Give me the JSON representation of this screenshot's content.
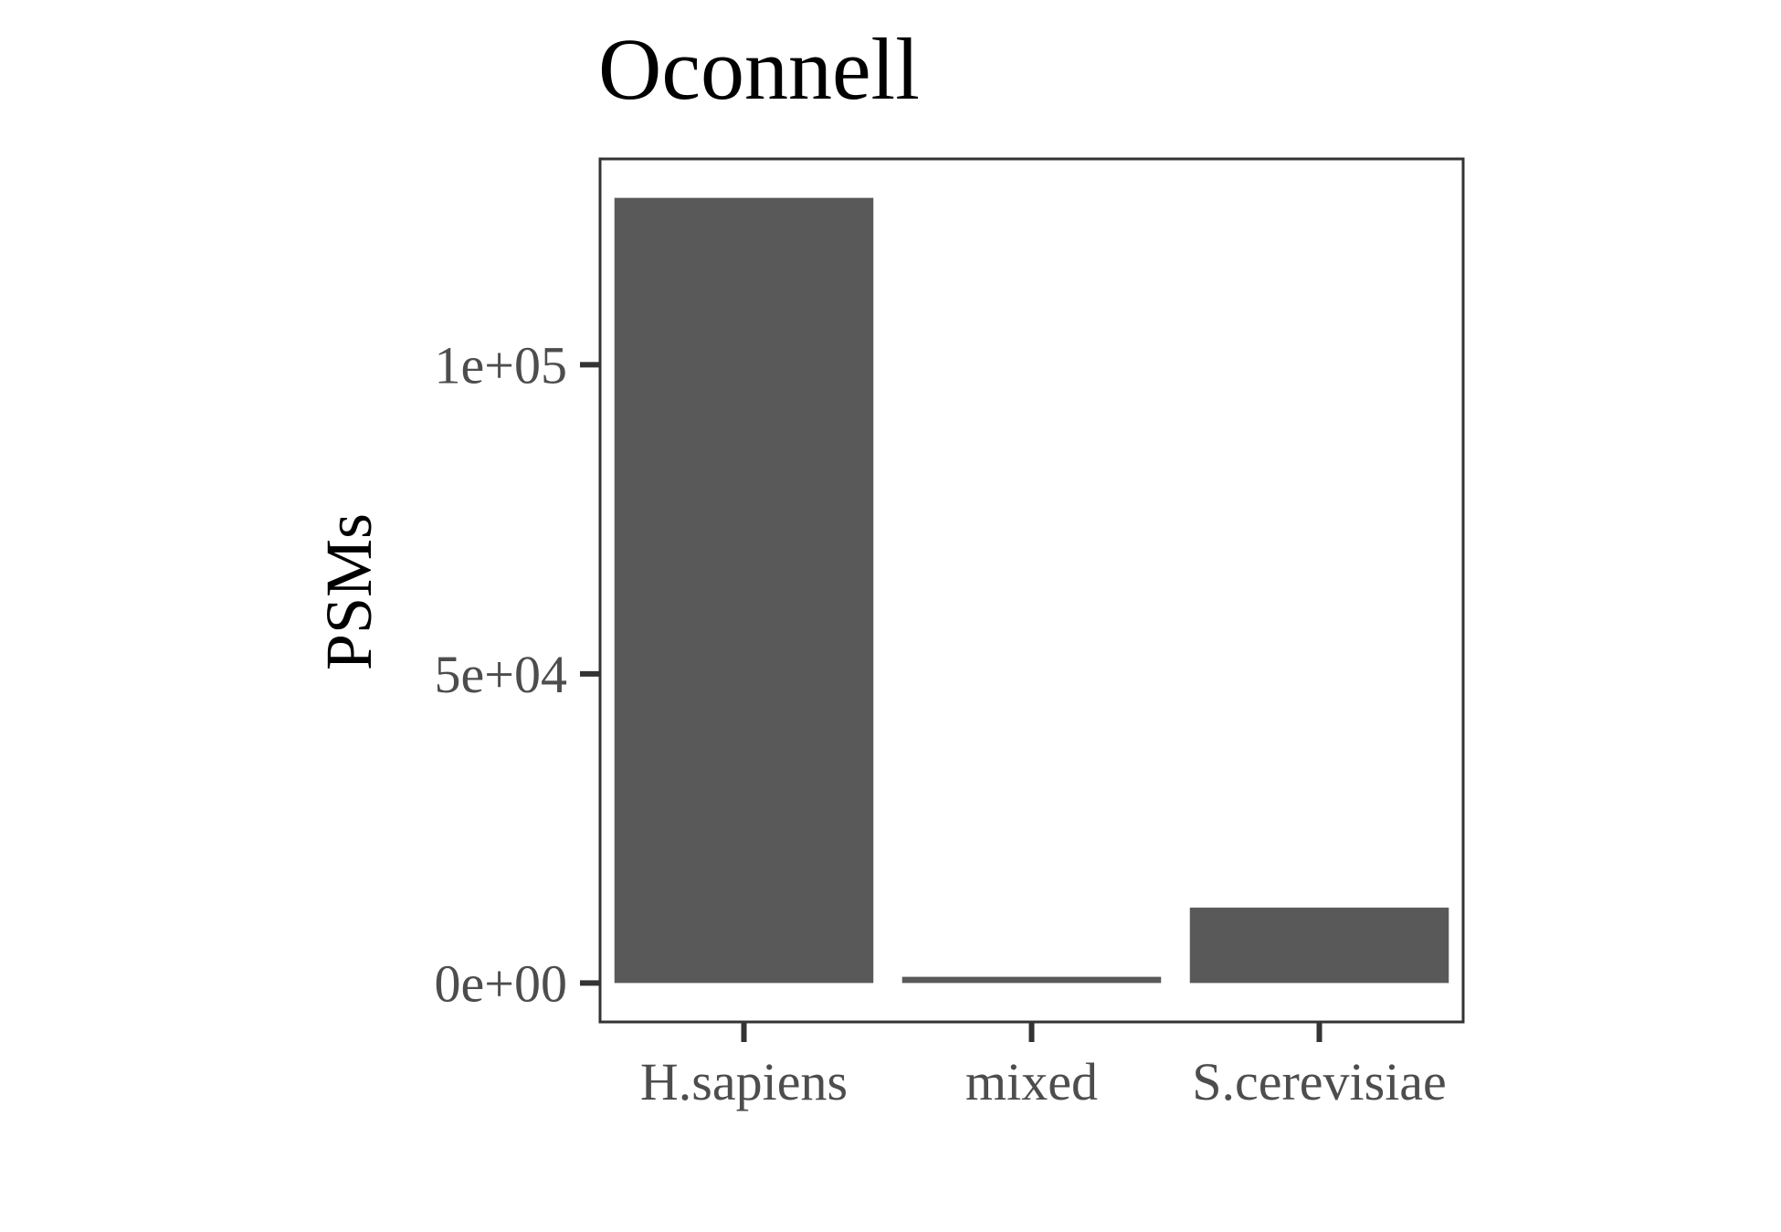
{
  "chart_data": {
    "type": "bar",
    "title": "Oconnell",
    "xlabel": "",
    "ylabel": "PSMs",
    "categories": [
      "H.sapiens",
      "mixed",
      "S.cerevisiae"
    ],
    "values": [
      127000,
      1000,
      12200
    ],
    "ylim": [
      -6300,
      133300
    ],
    "yticks": [
      0,
      50000,
      100000
    ],
    "ytick_labels": [
      "0e+00",
      "5e+04",
      "1e+05"
    ],
    "bar_color": "#595959",
    "grid": false,
    "legend": "none"
  }
}
